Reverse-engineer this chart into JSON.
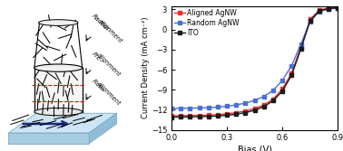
{
  "xlabel": "Bias (V)",
  "ylabel": "Current Density (mA cm⁻²)",
  "xlim": [
    0.0,
    0.9
  ],
  "ylim": [
    -15,
    3.5
  ],
  "xticks": [
    0.0,
    0.3,
    0.6,
    0.9
  ],
  "yticks": [
    -15,
    -12,
    -9,
    -6,
    -3,
    0,
    3
  ],
  "legend_labels": [
    "Aligned AgNW",
    "Random AgNW",
    "ITO"
  ],
  "line_colors": [
    "#e8312a",
    "#4a6fd4",
    "#1a1a1a"
  ],
  "marker_size": 3.5,
  "bias": [
    0.0,
    0.05,
    0.1,
    0.15,
    0.2,
    0.25,
    0.3,
    0.35,
    0.4,
    0.45,
    0.5,
    0.55,
    0.6,
    0.65,
    0.7,
    0.75,
    0.8,
    0.85,
    0.9
  ],
  "aligned_jsc": [
    -12.9,
    -12.88,
    -12.86,
    -12.83,
    -12.79,
    -12.72,
    -12.6,
    -12.43,
    -12.18,
    -11.82,
    -11.28,
    -10.4,
    -8.9,
    -6.5,
    -2.6,
    1.5,
    2.9,
    3.2,
    3.35
  ],
  "random_jsc": [
    -11.8,
    -11.78,
    -11.76,
    -11.73,
    -11.68,
    -11.6,
    -11.47,
    -11.28,
    -11.0,
    -10.6,
    -10.0,
    -9.1,
    -7.6,
    -5.4,
    -2.2,
    1.2,
    2.7,
    3.05,
    3.2
  ],
  "ito_jsc": [
    -13.1,
    -13.08,
    -13.06,
    -13.03,
    -12.99,
    -12.93,
    -12.82,
    -12.66,
    -12.42,
    -12.07,
    -11.52,
    -10.65,
    -9.18,
    -6.82,
    -2.9,
    1.3,
    2.8,
    3.1,
    3.25
  ]
}
